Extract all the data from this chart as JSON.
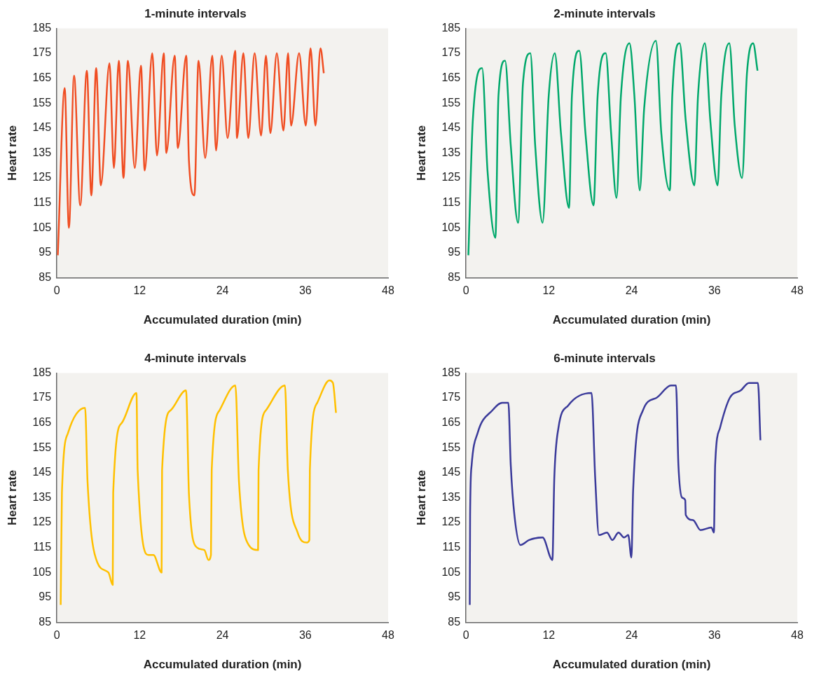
{
  "chart_data": [
    {
      "type": "line",
      "title": "1-minute intervals",
      "xlabel": "Accumulated duration (min)",
      "ylabel": "Heart rate",
      "xlim": [
        0,
        48
      ],
      "xticks": [
        0,
        12,
        24,
        36,
        48
      ],
      "ylim": [
        85,
        185
      ],
      "yticks": [
        85,
        95,
        105,
        115,
        125,
        135,
        145,
        155,
        165,
        175,
        185
      ],
      "grid": false,
      "legend": false,
      "marker": "none",
      "line_style": "solid",
      "x": [
        0.14,
        1.14,
        1.75,
        2.5,
        3.39,
        4.35,
        5.0,
        5.7,
        6.38,
        7.63,
        8.27,
        8.98,
        9.66,
        10.3,
        11.3,
        12.19,
        12.73,
        13.83,
        14.51,
        15.5,
        15.86,
        17.08,
        17.54,
        18.75,
        19.14,
        19.93,
        20.53,
        21.5,
        22.53,
        23.07,
        23.89,
        24.74,
        25.85,
        26.1,
        27.03,
        27.74,
        28.66,
        29.59,
        30.3,
        30.94,
        31.87,
        32.83,
        33.51,
        33.94,
        35.1,
        36.07,
        36.76,
        37.47,
        38.2,
        38.68
      ],
      "series": [
        {
          "color": "#f04e23",
          "values": [
            94,
            161,
            105,
            166,
            114,
            168,
            118,
            169,
            122,
            171,
            129,
            172,
            125,
            172,
            129,
            170,
            128,
            175,
            134,
            175,
            135,
            174,
            137,
            174,
            132,
            118,
            172,
            133,
            174,
            136,
            174,
            141,
            176,
            141,
            175,
            141,
            175,
            142,
            174,
            143,
            175,
            144,
            175,
            146,
            175,
            146,
            177,
            146,
            177,
            167
          ]
        }
      ]
    },
    {
      "type": "line",
      "title": "2-minute intervals",
      "xlabel": "Accumulated duration (min)",
      "ylabel": "Heart rate",
      "xlim": [
        0,
        48
      ],
      "xticks": [
        0,
        12,
        24,
        36,
        48
      ],
      "ylim": [
        85,
        185
      ],
      "yticks": [
        85,
        95,
        105,
        115,
        125,
        135,
        145,
        155,
        165,
        175,
        185
      ],
      "grid": false,
      "legend": false,
      "marker": "none",
      "line_style": "solid",
      "x": [
        0.35,
        0.99,
        2.34,
        3.12,
        4.26,
        4.71,
        5.67,
        6.49,
        7.55,
        8.26,
        9.33,
        10.03,
        11.1,
        11.99,
        12.87,
        13.76,
        14.93,
        15.35,
        16.42,
        17.31,
        18.48,
        19.08,
        20.25,
        21.03,
        21.81,
        22.45,
        23.69,
        24.4,
        25.18,
        25.82,
        27.52,
        28.3,
        29.54,
        29.89,
        30.96,
        31.84,
        33.09,
        33.62,
        34.61,
        35.4,
        36.46,
        36.99,
        38.16,
        38.94,
        40.0,
        40.71,
        41.6,
        42.24
      ],
      "series": [
        {
          "color": "#00a86b",
          "values": [
            94,
            148,
            169,
            128,
            101,
            158,
            172,
            138,
            107,
            163,
            175,
            138,
            107,
            158,
            175,
            143,
            113,
            158,
            176,
            143,
            114,
            158,
            175,
            143,
            117,
            158,
            179,
            158,
            120,
            153,
            180,
            143,
            120,
            158,
            179,
            148,
            122,
            158,
            179,
            148,
            122,
            158,
            179,
            146,
            125,
            167,
            179,
            168
          ]
        }
      ]
    },
    {
      "type": "line",
      "title": "4-minute intervals",
      "xlabel": "Accumulated duration (min)",
      "ylabel": "Heart rate",
      "xlim": [
        0,
        48
      ],
      "xticks": [
        0,
        12,
        24,
        36,
        48
      ],
      "ylim": [
        85,
        185
      ],
      "yticks": [
        85,
        95,
        105,
        115,
        125,
        135,
        145,
        155,
        165,
        175,
        185
      ],
      "grid": false,
      "legend": false,
      "marker": "none",
      "line_style": "solid",
      "x": [
        0.56,
        0.74,
        1.63,
        4.1,
        4.46,
        5.87,
        7.47,
        8.1,
        8.17,
        9.42,
        11.54,
        11.71,
        13.3,
        14.0,
        15.18,
        15.25,
        16.49,
        18.72,
        19.15,
        20.31,
        21.37,
        21.97,
        22.33,
        22.44,
        23.57,
        25.87,
        26.4,
        27.81,
        29.16,
        29.23,
        30.29,
        33.05,
        33.47,
        34.89,
        36.23,
        36.59,
        36.66,
        37.72,
        39.49,
        40.0,
        40.45
      ],
      "series": [
        {
          "color": "#ffc000",
          "values": [
            92,
            137,
            161,
            171,
            141,
            109,
            105,
            100,
            137,
            165,
            177,
            146,
            112,
            112,
            105,
            146,
            170,
            178,
            136,
            115,
            114,
            110,
            112,
            146,
            170,
            180,
            141,
            116,
            114,
            146,
            170,
            180,
            146,
            121,
            117,
            118,
            146,
            173,
            182,
            181,
            169
          ]
        }
      ]
    },
    {
      "type": "line",
      "title": "6-minute intervals",
      "xlabel": "Accumulated duration (min)",
      "ylabel": "Heart rate",
      "xlim": [
        0,
        48
      ],
      "xticks": [
        0,
        12,
        24,
        36,
        48
      ],
      "ylim": [
        85,
        185
      ],
      "yticks": [
        85,
        95,
        105,
        115,
        125,
        135,
        145,
        155,
        165,
        175,
        185
      ],
      "grid": false,
      "legend": false,
      "marker": "none",
      "line_style": "solid",
      "x": [
        0.55,
        0.6,
        0.82,
        1.7,
        3.83,
        5.25,
        6.14,
        6.49,
        7.02,
        7.9,
        9.15,
        11.1,
        12.52,
        12.8,
        13.4,
        14.82,
        18.19,
        18.72,
        19.26,
        20.43,
        21.2,
        22.1,
        22.9,
        23.51,
        23.97,
        24.22,
        25.64,
        27.59,
        29.7,
        30.43,
        30.78,
        31.31,
        31.77,
        31.84,
        32.9,
        33.97,
        35.57,
        35.92,
        36.1,
        36.81,
        38.22,
        39.82,
        40.99,
        42.3,
        42.66
      ],
      "series": [
        {
          "color": "#3a3a9a",
          "values": [
            92,
            128,
            148,
            161,
            170,
            173,
            173,
            148,
            128,
            116,
            118,
            119,
            110,
            143,
            163,
            172,
            177,
            143,
            120,
            121,
            118,
            121,
            119,
            120,
            111,
            138,
            170,
            175,
            180,
            180,
            148,
            135,
            134,
            128,
            126,
            122,
            123,
            121,
            148,
            163,
            175,
            178,
            181,
            181,
            158
          ]
        }
      ]
    }
  ]
}
